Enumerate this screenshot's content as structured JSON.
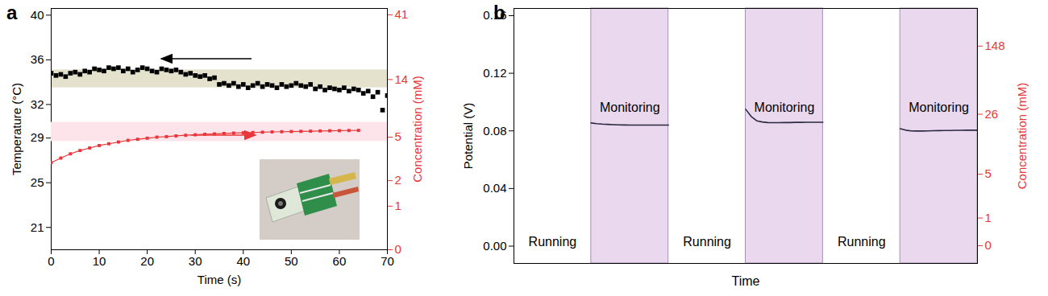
{
  "chart_data": [
    {
      "title": "a",
      "type": "scatter",
      "xlabel": "Time (s)",
      "ylabel": "Temperature (°C)",
      "y2label": "Concentration (mM)",
      "xlim": [
        0,
        70
      ],
      "xticks": [
        0,
        10,
        20,
        30,
        40,
        50,
        60,
        70
      ],
      "ylim": [
        19,
        40.6
      ],
      "yticks": [
        21,
        25,
        29,
        32,
        36,
        40
      ],
      "y2lim": [
        0,
        45.5
      ],
      "y2ticks": [
        0,
        1,
        2,
        5,
        14,
        41
      ],
      "log": "y2",
      "grid": false,
      "bands": [
        {
          "axis": "y",
          "range": [
            33.5,
            35.1
          ],
          "color": "#e4e1cd"
        },
        {
          "axis": "y2",
          "range": [
            4.6,
            6.6
          ],
          "color": "#fde4eb"
        }
      ],
      "series": [
        {
          "type": "scatter",
          "axis": "y",
          "color": "#000000",
          "marker": "square",
          "x": [
            0,
            1,
            2,
            3,
            4,
            5,
            6,
            7,
            8,
            9,
            10,
            11,
            12,
            13,
            14,
            15,
            16,
            17,
            18,
            19,
            20,
            21,
            22,
            23,
            24,
            25,
            26,
            27,
            28,
            29,
            30,
            31,
            32,
            33,
            34,
            35,
            36,
            37,
            38,
            39,
            40,
            41,
            42,
            43,
            44,
            45,
            46,
            47,
            48,
            49,
            50,
            51,
            52,
            53,
            54,
            55,
            56,
            57,
            58,
            59,
            60,
            61,
            62,
            63,
            64,
            65,
            66,
            67,
            68,
            69,
            70
          ],
          "values": [
            34.8,
            34.6,
            34.7,
            34.5,
            34.8,
            34.9,
            34.7,
            35.0,
            34.9,
            35.2,
            35.1,
            35.0,
            35.3,
            35.2,
            35.3,
            35.0,
            35.2,
            34.9,
            35.1,
            35.3,
            35.2,
            35.0,
            34.9,
            35.2,
            35.1,
            35.0,
            35.1,
            34.9,
            34.7,
            34.8,
            34.6,
            34.5,
            34.6,
            34.3,
            34.4,
            33.8,
            33.9,
            33.7,
            33.9,
            33.6,
            33.8,
            33.5,
            33.7,
            33.9,
            33.6,
            33.8,
            33.7,
            33.5,
            33.8,
            33.6,
            33.7,
            33.9,
            33.7,
            33.6,
            33.8,
            33.4,
            33.6,
            33.3,
            33.5,
            33.4,
            33.3,
            33.5,
            33.2,
            33.4,
            33.3,
            33.0,
            33.2,
            32.7,
            33.1,
            31.5,
            32.8
          ]
        },
        {
          "type": "line",
          "axis": "y2",
          "color": "#e8363a",
          "marker": "square",
          "line_style": "solid",
          "x": [
            0,
            2,
            4,
            6,
            8,
            10,
            12,
            14,
            16,
            18,
            20,
            22,
            24,
            26,
            28,
            30,
            32,
            34,
            36,
            38,
            40,
            42,
            44,
            46,
            48,
            50,
            52,
            54,
            56,
            58,
            60,
            62,
            64
          ],
          "values": [
            3.0,
            3.3,
            3.6,
            3.85,
            4.05,
            4.25,
            4.4,
            4.55,
            4.7,
            4.8,
            4.9,
            5.0,
            5.05,
            5.12,
            5.18,
            5.23,
            5.28,
            5.32,
            5.36,
            5.4,
            5.43,
            5.46,
            5.49,
            5.52,
            5.54,
            5.56,
            5.58,
            5.6,
            5.62,
            5.64,
            5.65,
            5.67,
            5.68
          ]
        }
      ]
    },
    {
      "title": "b",
      "type": "line",
      "xlabel": "Time",
      "ylabel": "Potential (V)",
      "y2label": "Concentration (mM)",
      "ylim": [
        -0.012,
        0.165
      ],
      "yticks": [
        {
          "value": 0,
          "label": "0.00"
        },
        {
          "value": 0.04,
          "label": "0.04"
        },
        {
          "value": 0.08,
          "label": "0.08"
        },
        {
          "value": 0.12,
          "label": "0.12"
        },
        {
          "value": 0.16,
          "label": "0.16"
        }
      ],
      "y2lim": [
        -0.56,
        382
      ],
      "y2ticks": [
        0,
        1,
        5,
        26,
        148
      ],
      "log": "y2",
      "grid": false,
      "tick_labels": "y",
      "color": "#2b2840",
      "segments": [
        {
          "label": "Running"
        },
        {
          "label": "Monitoring",
          "color": "#ead9ee",
          "values": [
            0.0855,
            0.085,
            0.0847,
            0.0845,
            0.0843,
            0.0842,
            0.0841,
            0.084,
            0.084,
            0.084,
            0.084,
            0.084,
            0.084,
            0.084,
            0.084
          ]
        },
        {
          "label": "Running"
        },
        {
          "label": "Monitoring",
          "color": "#ead9ee",
          "values": [
            0.095,
            0.09,
            0.087,
            0.0862,
            0.0858,
            0.0857,
            0.0857,
            0.0858,
            0.0858,
            0.0859,
            0.0859,
            0.086,
            0.086,
            0.086,
            0.086
          ]
        },
        {
          "label": "Running"
        },
        {
          "label": "Monitoring",
          "color": "#ead9ee",
          "values": [
            0.0815,
            0.0805,
            0.08,
            0.0799,
            0.0799,
            0.08,
            0.0801,
            0.0802,
            0.0803,
            0.0803,
            0.0804,
            0.0804,
            0.0805,
            0.0805,
            0.0805
          ]
        }
      ]
    }
  ]
}
